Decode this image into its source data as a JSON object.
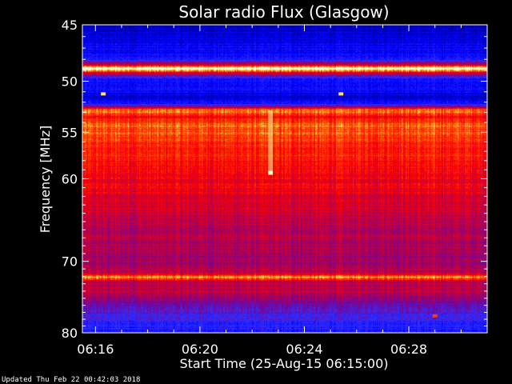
{
  "chart_data": {
    "type": "heatmap",
    "title": "Solar radio Flux (Glasgow)",
    "xlabel": "Start Time (25-Aug-15 06:15:00)",
    "ylabel": "Frequency [MHz]",
    "xlim_minutes": [
      15.5,
      31.0
    ],
    "ylim_mhz": [
      45,
      80
    ],
    "y_scale": "log",
    "x_ticks": [
      {
        "minute": 16,
        "label": "06:16"
      },
      {
        "minute": 20,
        "label": "06:20"
      },
      {
        "minute": 24,
        "label": "06:24"
      },
      {
        "minute": 28,
        "label": "06:28"
      }
    ],
    "y_ticks": [
      {
        "value": 45,
        "label": "45"
      },
      {
        "value": 50,
        "label": "50"
      },
      {
        "value": 55,
        "label": "55"
      },
      {
        "value": 60,
        "label": "60"
      },
      {
        "value": 70,
        "label": "70"
      },
      {
        "value": 80,
        "label": "80"
      }
    ],
    "colormap": [
      "#000080",
      "#0000ff",
      "#3030ff",
      "#7a0090",
      "#c00040",
      "#ff0000",
      "#ff6000",
      "#ffff80",
      "#ffffff"
    ],
    "frequency_profile": [
      {
        "mhz": 45.0,
        "level": 0.05
      },
      {
        "mhz": 46.5,
        "level": 0.12
      },
      {
        "mhz": 48.0,
        "level": 0.16
      },
      {
        "mhz": 48.5,
        "level": 0.55
      },
      {
        "mhz": 48.85,
        "level": 1.0
      },
      {
        "mhz": 49.2,
        "level": 0.55
      },
      {
        "mhz": 49.8,
        "level": 0.18
      },
      {
        "mhz": 51.0,
        "level": 0.14
      },
      {
        "mhz": 51.6,
        "level": 0.08
      },
      {
        "mhz": 52.2,
        "level": 0.2
      },
      {
        "mhz": 52.8,
        "level": 0.78
      },
      {
        "mhz": 53.4,
        "level": 0.62
      },
      {
        "mhz": 54.3,
        "level": 0.74
      },
      {
        "mhz": 56.0,
        "level": 0.68
      },
      {
        "mhz": 58.0,
        "level": 0.64
      },
      {
        "mhz": 60.0,
        "level": 0.6
      },
      {
        "mhz": 63.0,
        "level": 0.55
      },
      {
        "mhz": 65.0,
        "level": 0.5
      },
      {
        "mhz": 68.0,
        "level": 0.47
      },
      {
        "mhz": 70.0,
        "level": 0.44
      },
      {
        "mhz": 71.5,
        "level": 0.5
      },
      {
        "mhz": 72.1,
        "level": 0.78
      },
      {
        "mhz": 72.8,
        "level": 0.48
      },
      {
        "mhz": 74.0,
        "level": 0.5
      },
      {
        "mhz": 76.0,
        "level": 0.35
      },
      {
        "mhz": 78.0,
        "level": 0.25
      },
      {
        "mhz": 80.0,
        "level": 0.18
      }
    ],
    "features": [
      {
        "kind": "burst",
        "minute": 22.7,
        "mhz_from": 52.8,
        "mhz_to": 59.6,
        "level": 0.9
      },
      {
        "kind": "spot",
        "minute": 22.7,
        "mhz": 59.3,
        "level": 0.95
      },
      {
        "kind": "spot",
        "minute": 16.3,
        "mhz": 51.2,
        "level": 0.85
      },
      {
        "kind": "spot",
        "minute": 25.4,
        "mhz": 51.2,
        "level": 0.85
      },
      {
        "kind": "spot",
        "minute": 29.0,
        "mhz": 77.5,
        "level": 0.7
      }
    ]
  },
  "footer": {
    "updated": "Updated Thu Feb 22 00:42:03 2018"
  }
}
